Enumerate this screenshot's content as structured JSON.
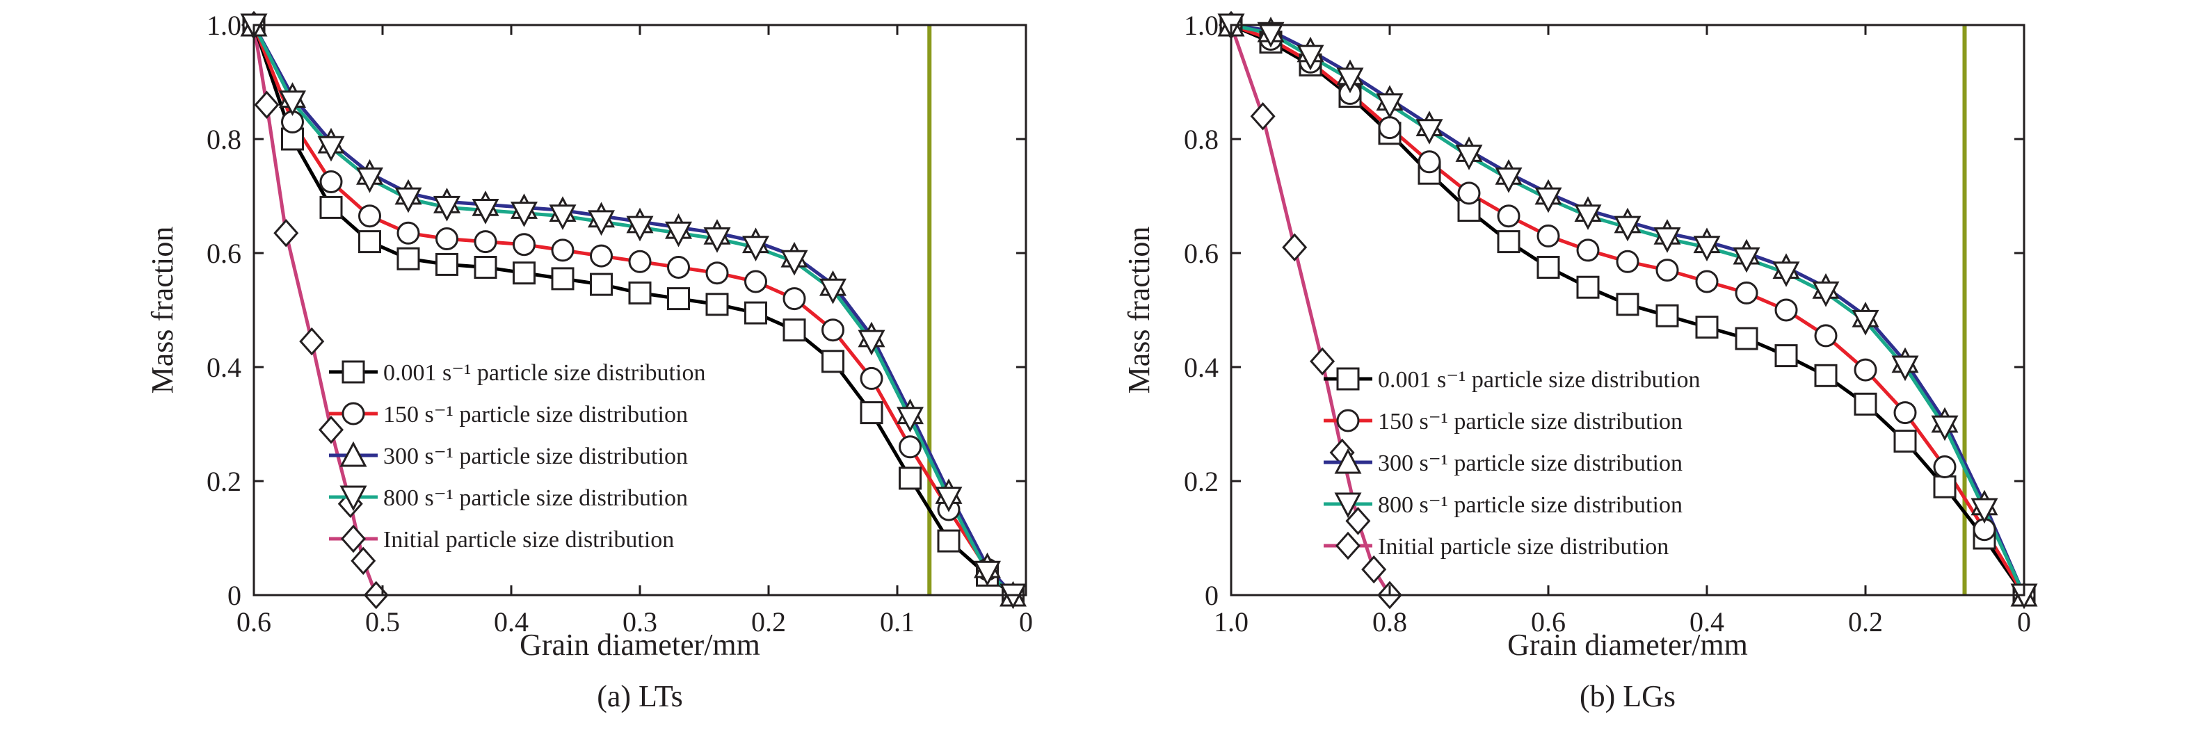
{
  "figure": {
    "captions": [
      "(a) LTs",
      "(b) LGs"
    ]
  },
  "colors": {
    "rate_0001": "#000000",
    "rate_150": "#e8202a",
    "rate_300": "#2e2f8e",
    "rate_800": "#1aa88a",
    "initial": "#c8407a",
    "reference_line": "#8a9a1c",
    "marker_fill": "#ffffff",
    "marker_stroke": "#231f20"
  },
  "chart_data": [
    {
      "type": "line",
      "panel": "(a) LTs",
      "xlabel": "Grain diameter/mm",
      "ylabel": "Mass fraction",
      "xlim": [
        0.6,
        0
      ],
      "ylim": [
        0,
        1.0
      ],
      "x_reversed": true,
      "x_ticks": [
        "0.6",
        "0.5",
        "0.4",
        "0.3",
        "0.2",
        "0.1",
        "0"
      ],
      "x_tick_values": [
        0.6,
        0.5,
        0.4,
        0.3,
        0.2,
        0.1,
        0
      ],
      "y_ticks": [
        "0",
        "0.2",
        "0.4",
        "0.6",
        "0.8",
        "1.0"
      ],
      "y_tick_values": [
        0,
        0.2,
        0.4,
        0.6,
        0.8,
        1.0
      ],
      "reference_line_x": 0.075,
      "legend_position": "lower-left",
      "series": [
        {
          "name": "0.001 s⁻¹ particle size distribution",
          "marker": "square",
          "color_key": "rate_0001",
          "x": [
            0.6,
            0.57,
            0.54,
            0.51,
            0.48,
            0.45,
            0.42,
            0.39,
            0.36,
            0.33,
            0.3,
            0.27,
            0.24,
            0.21,
            0.18,
            0.15,
            0.12,
            0.09,
            0.06,
            0.03,
            0.01
          ],
          "y": [
            1.0,
            0.8,
            0.68,
            0.62,
            0.59,
            0.58,
            0.575,
            0.565,
            0.555,
            0.545,
            0.53,
            0.52,
            0.51,
            0.495,
            0.465,
            0.41,
            0.32,
            0.205,
            0.095,
            0.035,
            0.0
          ]
        },
        {
          "name": "150 s⁻¹ particle size distribution",
          "marker": "circle",
          "color_key": "rate_150",
          "x": [
            0.6,
            0.57,
            0.54,
            0.51,
            0.48,
            0.45,
            0.42,
            0.39,
            0.36,
            0.33,
            0.3,
            0.27,
            0.24,
            0.21,
            0.18,
            0.15,
            0.12,
            0.09,
            0.06,
            0.03,
            0.01
          ],
          "y": [
            1.0,
            0.83,
            0.725,
            0.665,
            0.635,
            0.625,
            0.62,
            0.615,
            0.605,
            0.595,
            0.585,
            0.575,
            0.565,
            0.55,
            0.52,
            0.465,
            0.38,
            0.26,
            0.15,
            0.045,
            0.0
          ]
        },
        {
          "name": "300 s⁻¹ particle size distribution",
          "marker": "triangle-up",
          "color_key": "rate_300",
          "x": [
            0.6,
            0.57,
            0.54,
            0.51,
            0.48,
            0.45,
            0.42,
            0.39,
            0.36,
            0.33,
            0.3,
            0.27,
            0.24,
            0.21,
            0.18,
            0.15,
            0.12,
            0.09,
            0.06,
            0.03,
            0.01
          ],
          "y": [
            1.0,
            0.875,
            0.795,
            0.74,
            0.705,
            0.69,
            0.685,
            0.68,
            0.675,
            0.665,
            0.655,
            0.645,
            0.635,
            0.62,
            0.595,
            0.545,
            0.455,
            0.32,
            0.18,
            0.05,
            0.0
          ]
        },
        {
          "name": "800 s⁻¹ particle size distribution",
          "marker": "triangle-down",
          "color_key": "rate_800",
          "x": [
            0.6,
            0.57,
            0.54,
            0.51,
            0.48,
            0.45,
            0.42,
            0.39,
            0.36,
            0.33,
            0.3,
            0.27,
            0.24,
            0.21,
            0.18,
            0.15,
            0.12,
            0.09,
            0.06,
            0.03,
            0.01
          ],
          "y": [
            1.0,
            0.865,
            0.785,
            0.73,
            0.695,
            0.68,
            0.675,
            0.67,
            0.665,
            0.655,
            0.645,
            0.635,
            0.625,
            0.61,
            0.585,
            0.535,
            0.445,
            0.31,
            0.17,
            0.04,
            0.0
          ]
        },
        {
          "name": "Initial particle size distribution",
          "marker": "diamond",
          "color_key": "initial",
          "x": [
            0.6,
            0.59,
            0.575,
            0.555,
            0.54,
            0.525,
            0.515,
            0.505
          ],
          "y": [
            1.0,
            0.86,
            0.635,
            0.445,
            0.29,
            0.16,
            0.06,
            0.0
          ]
        }
      ]
    },
    {
      "type": "line",
      "panel": "(b) LGs",
      "xlabel": "Grain diameter/mm",
      "ylabel": "Mass fraction",
      "xlim": [
        1.0,
        0
      ],
      "ylim": [
        0,
        1.0
      ],
      "x_reversed": true,
      "x_ticks": [
        "1.0",
        "0.8",
        "0.6",
        "0.4",
        "0.2",
        "0"
      ],
      "x_tick_values": [
        1.0,
        0.8,
        0.6,
        0.4,
        0.2,
        0
      ],
      "y_ticks": [
        "0",
        "0.2",
        "0.4",
        "0.6",
        "0.8",
        "1.0"
      ],
      "y_tick_values": [
        0,
        0.2,
        0.4,
        0.6,
        0.8,
        1.0
      ],
      "reference_line_x": 0.075,
      "legend_position": "lower-left",
      "series": [
        {
          "name": "0.001 s⁻¹ particle size distribution",
          "marker": "square",
          "color_key": "rate_0001",
          "x": [
            1.0,
            0.95,
            0.9,
            0.85,
            0.8,
            0.75,
            0.7,
            0.65,
            0.6,
            0.55,
            0.5,
            0.45,
            0.4,
            0.35,
            0.3,
            0.25,
            0.2,
            0.15,
            0.1,
            0.05,
            0.0
          ],
          "y": [
            1.0,
            0.97,
            0.93,
            0.875,
            0.81,
            0.74,
            0.675,
            0.62,
            0.575,
            0.54,
            0.51,
            0.49,
            0.47,
            0.45,
            0.42,
            0.385,
            0.335,
            0.27,
            0.19,
            0.1,
            0.0
          ]
        },
        {
          "name": "150 s⁻¹ particle size distribution",
          "marker": "circle",
          "color_key": "rate_150",
          "x": [
            1.0,
            0.95,
            0.9,
            0.85,
            0.8,
            0.75,
            0.7,
            0.65,
            0.6,
            0.55,
            0.5,
            0.45,
            0.4,
            0.35,
            0.3,
            0.25,
            0.2,
            0.15,
            0.1,
            0.05,
            0.0
          ],
          "y": [
            1.0,
            0.975,
            0.935,
            0.88,
            0.82,
            0.76,
            0.705,
            0.665,
            0.63,
            0.605,
            0.585,
            0.57,
            0.55,
            0.53,
            0.5,
            0.455,
            0.395,
            0.32,
            0.225,
            0.115,
            0.0
          ]
        },
        {
          "name": "300 s⁻¹ particle size distribution",
          "marker": "triangle-up",
          "color_key": "rate_300",
          "x": [
            1.0,
            0.95,
            0.9,
            0.85,
            0.8,
            0.75,
            0.7,
            0.65,
            0.6,
            0.55,
            0.5,
            0.45,
            0.4,
            0.35,
            0.3,
            0.25,
            0.2,
            0.15,
            0.1,
            0.05,
            0.0
          ],
          "y": [
            1.0,
            0.99,
            0.955,
            0.915,
            0.87,
            0.825,
            0.78,
            0.74,
            0.705,
            0.675,
            0.655,
            0.635,
            0.62,
            0.6,
            0.575,
            0.54,
            0.49,
            0.41,
            0.305,
            0.16,
            0.0
          ]
        },
        {
          "name": "800 s⁻¹ particle size distribution",
          "marker": "triangle-down",
          "color_key": "rate_800",
          "x": [
            1.0,
            0.95,
            0.9,
            0.85,
            0.8,
            0.75,
            0.7,
            0.65,
            0.6,
            0.55,
            0.5,
            0.45,
            0.4,
            0.35,
            0.3,
            0.25,
            0.2,
            0.15,
            0.1,
            0.05,
            0.0
          ],
          "y": [
            1.0,
            0.985,
            0.945,
            0.905,
            0.86,
            0.815,
            0.77,
            0.73,
            0.695,
            0.665,
            0.645,
            0.625,
            0.61,
            0.59,
            0.565,
            0.53,
            0.48,
            0.4,
            0.295,
            0.15,
            0.0
          ]
        },
        {
          "name": "Initial particle size distribution",
          "marker": "diamond",
          "color_key": "initial",
          "x": [
            1.0,
            0.96,
            0.92,
            0.885,
            0.86,
            0.84,
            0.82,
            0.8
          ],
          "y": [
            1.0,
            0.84,
            0.61,
            0.41,
            0.25,
            0.13,
            0.045,
            0.0
          ]
        }
      ]
    }
  ]
}
